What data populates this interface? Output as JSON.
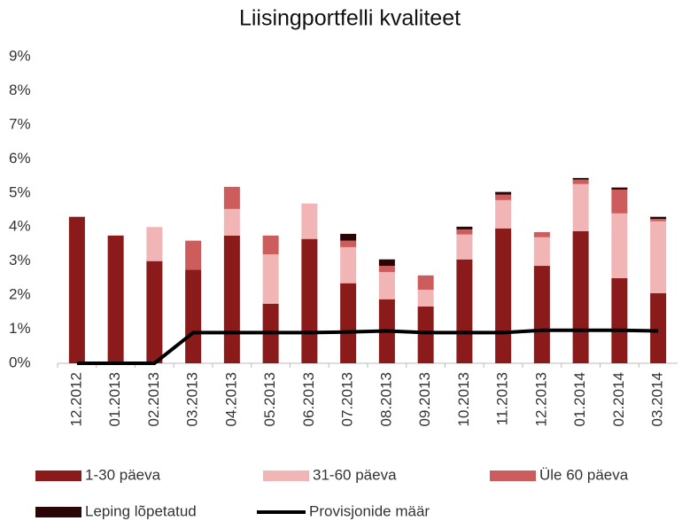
{
  "chart_data": {
    "type": "stacked_bar_line",
    "title": "Liisingportfelli kvaliteet",
    "categories": [
      "12.2012",
      "01.2013",
      "02.2013",
      "03.2013",
      "04.2013",
      "05.2013",
      "06.2013",
      "07.2013",
      "08.2013",
      "09.2013",
      "10.2013",
      "11.2013",
      "12.2013",
      "01.2014",
      "02.2014",
      "03.2014"
    ],
    "series": [
      {
        "name": "1-30 päeva",
        "color": "#8b1a1a",
        "kind": "bar",
        "values": [
          4.3,
          3.75,
          3.0,
          2.75,
          3.75,
          1.75,
          3.65,
          2.35,
          1.88,
          1.67,
          3.05,
          3.96,
          2.86,
          3.88,
          2.5,
          2.06
        ]
      },
      {
        "name": "31-60 päeva",
        "color": "#f2b5b5",
        "kind": "bar",
        "values": [
          0,
          0,
          1.0,
          0,
          0.78,
          1.45,
          1.04,
          1.06,
          0.8,
          0.49,
          0.73,
          0.83,
          0.84,
          1.38,
          1.9,
          2.11
        ]
      },
      {
        "name": "Üle 60 päeva",
        "color": "#cd5c5c",
        "kind": "bar",
        "values": [
          0,
          0,
          0,
          0.85,
          0.65,
          0.55,
          0,
          0.19,
          0.18,
          0.42,
          0.15,
          0.16,
          0.15,
          0.13,
          0.7,
          0.07
        ]
      },
      {
        "name": "Leping lõpetatud",
        "color": "#2a0505",
        "kind": "bar",
        "values": [
          0,
          0,
          0,
          0,
          0,
          0,
          0,
          0.2,
          0.19,
          0,
          0.08,
          0.08,
          0,
          0.05,
          0.06,
          0.06
        ]
      },
      {
        "name": "Provisjonide määr",
        "color": "#000000",
        "kind": "line",
        "values": [
          0,
          0,
          0,
          0.9,
          0.9,
          0.9,
          0.9,
          0.92,
          0.95,
          0.9,
          0.9,
          0.9,
          0.97,
          0.97,
          0.97,
          0.95
        ]
      }
    ],
    "ylim": [
      0,
      9
    ],
    "yticks": [
      {
        "value": 0,
        "label": "0%"
      },
      {
        "value": 1,
        "label": "1%"
      },
      {
        "value": 2,
        "label": "2%"
      },
      {
        "value": 3,
        "label": "3%"
      },
      {
        "value": 4,
        "label": "4%"
      },
      {
        "value": 5,
        "label": "5%"
      },
      {
        "value": 6,
        "label": "6%"
      },
      {
        "value": 7,
        "label": "7%"
      },
      {
        "value": 8,
        "label": "8%"
      },
      {
        "value": 9,
        "label": "9%"
      }
    ]
  }
}
